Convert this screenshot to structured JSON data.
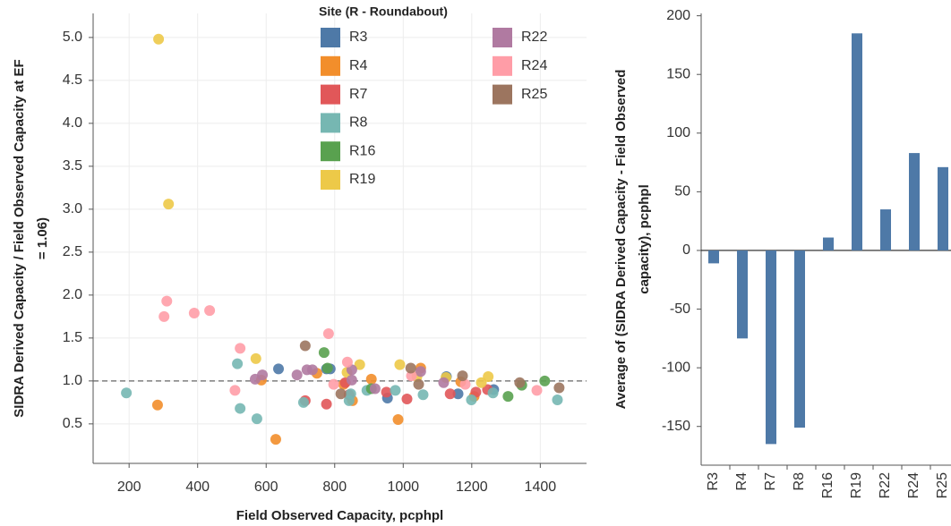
{
  "chart_data": [
    {
      "type": "scatter",
      "xlabel": "Field Observed Capacity, pcphpl",
      "ylabel": [
        "SIDRA Derived Capacity  / Field Observed Capacity at EF",
        "= 1.06)"
      ],
      "legend_title": "Site (R - Roundabout)",
      "xlim": [
        95,
        1535
      ],
      "xticks": [
        200,
        400,
        600,
        800,
        1000,
        1200,
        1400
      ],
      "ylim": [
        0.04,
        5.28
      ],
      "yticks": [
        0.5,
        {
          "value": 1,
          "label": "1.0"
        },
        1.5,
        {
          "value": 2,
          "label": "2.0"
        },
        2.5,
        {
          "value": 3,
          "label": "3.0"
        },
        3.5,
        {
          "value": 4,
          "label": "4.0"
        },
        4.5,
        {
          "value": 5,
          "label": "5.0"
        }
      ],
      "grid": true,
      "ref_line": 1,
      "series": [
        {
          "name": "R3",
          "color": "#4e79a7",
          "x": [
            636,
            787,
            1126,
            1160,
            1264,
            776,
            954
          ],
          "y": [
            1.14,
            1.14,
            1.05,
            0.85,
            0.9,
            1.14,
            0.8
          ]
        },
        {
          "name": "R4",
          "color": "#f28e2b",
          "x": [
            283,
            628,
            586,
            748,
            852,
            907,
            985,
            1051,
            1168,
            1207,
            826
          ],
          "y": [
            0.72,
            0.32,
            1.01,
            1.09,
            0.77,
            1.02,
            0.55,
            1.15,
            0.99,
            0.82,
            0.96
          ]
        },
        {
          "name": "R7",
          "color": "#e15759",
          "x": [
            714,
            776,
            842,
            951,
            1011,
            1137,
            1212,
            1246,
            831
          ],
          "y": [
            0.77,
            0.73,
            0.84,
            0.87,
            0.79,
            0.85,
            0.87,
            0.9,
            0.98
          ]
        },
        {
          "name": "R8",
          "color": "#76b7b2",
          "x": [
            192,
            516,
            524,
            573,
            709,
            847,
            894,
            977,
            1058,
            1199,
            1262,
            1450,
            842
          ],
          "y": [
            0.86,
            1.2,
            0.68,
            0.56,
            0.75,
            0.85,
            0.89,
            0.89,
            0.84,
            0.78,
            0.86,
            0.78,
            0.77
          ]
        },
        {
          "name": "R16",
          "color": "#59a14f",
          "x": [
            769,
            779,
            1306,
            1413,
            1346,
            907
          ],
          "y": [
            1.33,
            1.15,
            0.82,
            1.0,
            0.95,
            0.91
          ]
        },
        {
          "name": "R19",
          "color": "#edc948",
          "x": [
            286,
            315,
            570,
            836,
            873,
            990,
            1248,
            1125,
            1228,
            1040
          ],
          "y": [
            4.98,
            3.06,
            1.26,
            1.1,
            1.19,
            1.19,
            1.05,
            1.04,
            0.98,
            1.05
          ]
        },
        {
          "name": "R22",
          "color": "#b07aa1",
          "x": [
            568,
            589,
            690,
            719,
            735,
            850,
            850,
            1051,
            1118,
            918
          ],
          "y": [
            1.02,
            1.07,
            1.07,
            1.13,
            1.13,
            1.13,
            1.01,
            1.11,
            0.98,
            0.91
          ]
        },
        {
          "name": "R24",
          "color": "#ff9da7",
          "x": [
            310,
            302,
            390,
            435,
            524,
            509,
            782,
            837,
            797,
            1390,
            1024,
            1181
          ],
          "y": [
            1.93,
            1.75,
            1.79,
            1.82,
            1.38,
            0.89,
            1.55,
            1.22,
            0.96,
            0.89,
            1.06,
            0.96
          ]
        },
        {
          "name": "R25",
          "color": "#9c755f",
          "x": [
            714,
            1022,
            1173,
            1340,
            1455,
            818,
            1045
          ],
          "y": [
            1.41,
            1.15,
            1.06,
            0.98,
            0.92,
            0.85,
            0.96
          ]
        }
      ]
    },
    {
      "type": "bar",
      "ylabel": [
        "Average of (SIDRA Derived Capacity - Field Observed",
        "capacity), pcphpl"
      ],
      "categories": [
        "R3",
        "R4",
        "R7",
        "R8",
        "R16",
        "R19",
        "R22",
        "R24",
        "R25"
      ],
      "values": [
        -11,
        -75,
        -165,
        -151,
        11,
        185,
        35,
        83,
        71
      ],
      "color": "#4e79a7",
      "ylim": [
        -183,
        202
      ],
      "yticks": [
        -150,
        -100,
        -50,
        0,
        50,
        100,
        150,
        200
      ],
      "grid": false
    }
  ]
}
